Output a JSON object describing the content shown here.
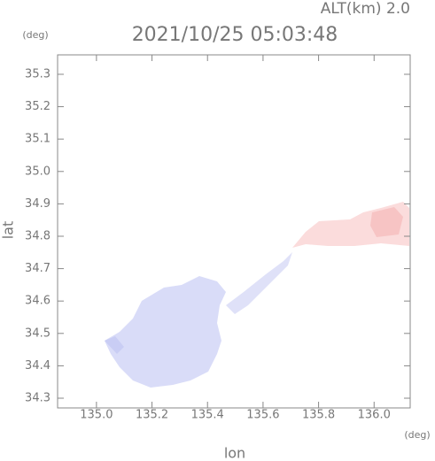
{
  "chart_data": {
    "type": "map",
    "title": "2021/10/25 05:03:48",
    "subtitle": "ALT(km) 2.0",
    "x_label": "lon",
    "x_unit": "(deg)",
    "y_label": "lat",
    "y_unit": "(deg)",
    "xlim": [
      134.86,
      136.13
    ],
    "ylim": [
      34.27,
      35.36
    ],
    "xticks": [
      {
        "value": 135,
        "label": "135.0"
      },
      135.2,
      135.4,
      135.6,
      135.8,
      {
        "value": 136,
        "label": "136.0"
      }
    ],
    "yticks": [
      34.3,
      34.4,
      34.5,
      34.6,
      34.7,
      34.8,
      34.9,
      {
        "value": 35,
        "label": "35.0"
      },
      35.1,
      35.2,
      35.3
    ]
  }
}
